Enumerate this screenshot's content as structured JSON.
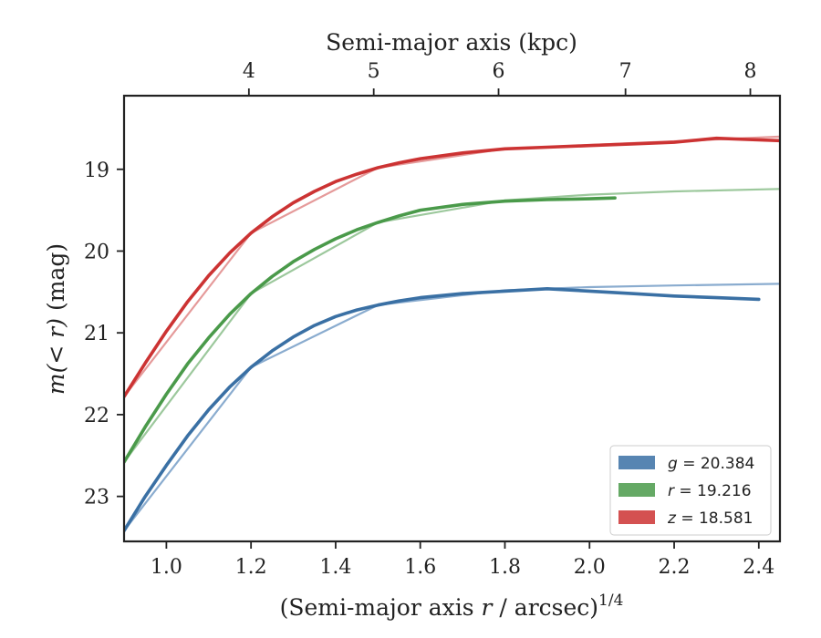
{
  "chart_data": {
    "type": "line",
    "xlabel": "(Semi-major axis r / arcsec)",
    "xlabel_italic": "r",
    "xlabel_pre": "(Semi-major axis ",
    "xlabel_post": " / arcsec)",
    "xlabel_sup": "1/4",
    "ylabel_math": "m(< r)",
    "ylabel_unit": "(mag)",
    "top_xlabel": "Semi-major axis (kpc)",
    "xlim": [
      0.9,
      2.45
    ],
    "ylim": [
      23.55,
      18.1
    ],
    "y_inverted": true,
    "x_ticks": [
      1.0,
      1.2,
      1.4,
      1.6,
      1.8,
      2.0,
      2.2,
      2.4
    ],
    "x_tick_labels": [
      "1.0",
      "1.2",
      "1.4",
      "1.6",
      "1.8",
      "2.0",
      "2.2",
      "2.4"
    ],
    "y_ticks": [
      19,
      20,
      21,
      22,
      23
    ],
    "y_tick_labels": [
      "19",
      "20",
      "21",
      "22",
      "23"
    ],
    "top_ticks": [
      {
        "x": 1.195,
        "label": "4"
      },
      {
        "x": 1.49,
        "label": "5"
      },
      {
        "x": 1.785,
        "label": "6"
      },
      {
        "x": 2.085,
        "label": "7"
      },
      {
        "x": 2.38,
        "label": "8"
      }
    ],
    "grid": false,
    "legend_position": "bottom-right",
    "series": [
      {
        "name": "g = 20.384",
        "band": "g",
        "value": "20.384",
        "color": "#3a70a4",
        "model_color": "#8aaccf",
        "points": [
          [
            0.9,
            23.42
          ],
          [
            0.95,
            23.0
          ],
          [
            1.0,
            22.62
          ],
          [
            1.05,
            22.26
          ],
          [
            1.1,
            21.94
          ],
          [
            1.15,
            21.66
          ],
          [
            1.2,
            21.42
          ],
          [
            1.25,
            21.22
          ],
          [
            1.3,
            21.05
          ],
          [
            1.35,
            20.91
          ],
          [
            1.4,
            20.8
          ],
          [
            1.45,
            20.72
          ],
          [
            1.5,
            20.66
          ],
          [
            1.55,
            20.61
          ],
          [
            1.6,
            20.57
          ],
          [
            1.7,
            20.52
          ],
          [
            1.8,
            20.49
          ],
          [
            1.9,
            20.46
          ],
          [
            2.0,
            20.49
          ],
          [
            2.1,
            20.52
          ],
          [
            2.2,
            20.55
          ],
          [
            2.3,
            20.57
          ],
          [
            2.4,
            20.59
          ]
        ],
        "model": [
          [
            0.9,
            23.42
          ],
          [
            1.2,
            21.42
          ],
          [
            1.5,
            20.66
          ],
          [
            1.8,
            20.48
          ],
          [
            2.0,
            20.44
          ],
          [
            2.2,
            20.42
          ],
          [
            2.45,
            20.4
          ]
        ]
      },
      {
        "name": "r = 19.216",
        "band": "r",
        "value": "19.216",
        "color": "#4a9a4a",
        "model_color": "#9cc89c",
        "points": [
          [
            0.9,
            22.58
          ],
          [
            0.95,
            22.15
          ],
          [
            1.0,
            21.75
          ],
          [
            1.05,
            21.38
          ],
          [
            1.1,
            21.06
          ],
          [
            1.15,
            20.77
          ],
          [
            1.2,
            20.52
          ],
          [
            1.25,
            20.31
          ],
          [
            1.3,
            20.13
          ],
          [
            1.35,
            19.98
          ],
          [
            1.4,
            19.85
          ],
          [
            1.45,
            19.74
          ],
          [
            1.5,
            19.65
          ],
          [
            1.55,
            19.57
          ],
          [
            1.6,
            19.5
          ],
          [
            1.7,
            19.43
          ],
          [
            1.8,
            19.39
          ],
          [
            1.9,
            19.37
          ],
          [
            2.0,
            19.36
          ],
          [
            2.06,
            19.35
          ]
        ],
        "model": [
          [
            0.9,
            22.58
          ],
          [
            1.2,
            20.52
          ],
          [
            1.5,
            19.65
          ],
          [
            1.8,
            19.38
          ],
          [
            2.0,
            19.31
          ],
          [
            2.2,
            19.27
          ],
          [
            2.45,
            19.24
          ]
        ]
      },
      {
        "name": "z = 18.581",
        "band": "z",
        "value": "18.581",
        "color": "#cc3333",
        "model_color": "#e59a9a",
        "points": [
          [
            0.9,
            21.78
          ],
          [
            0.95,
            21.37
          ],
          [
            1.0,
            20.98
          ],
          [
            1.05,
            20.62
          ],
          [
            1.1,
            20.3
          ],
          [
            1.15,
            20.02
          ],
          [
            1.2,
            19.78
          ],
          [
            1.25,
            19.58
          ],
          [
            1.3,
            19.41
          ],
          [
            1.35,
            19.27
          ],
          [
            1.4,
            19.15
          ],
          [
            1.45,
            19.06
          ],
          [
            1.5,
            18.98
          ],
          [
            1.55,
            18.92
          ],
          [
            1.6,
            18.87
          ],
          [
            1.7,
            18.8
          ],
          [
            1.8,
            18.75
          ],
          [
            1.9,
            18.73
          ],
          [
            2.0,
            18.71
          ],
          [
            2.1,
            18.69
          ],
          [
            2.2,
            18.67
          ],
          [
            2.3,
            18.62
          ],
          [
            2.4,
            18.64
          ],
          [
            2.45,
            18.65
          ]
        ],
        "model": [
          [
            0.9,
            21.78
          ],
          [
            1.2,
            19.78
          ],
          [
            1.5,
            18.98
          ],
          [
            1.8,
            18.75
          ],
          [
            2.1,
            18.68
          ],
          [
            2.45,
            18.6
          ]
        ]
      }
    ]
  }
}
